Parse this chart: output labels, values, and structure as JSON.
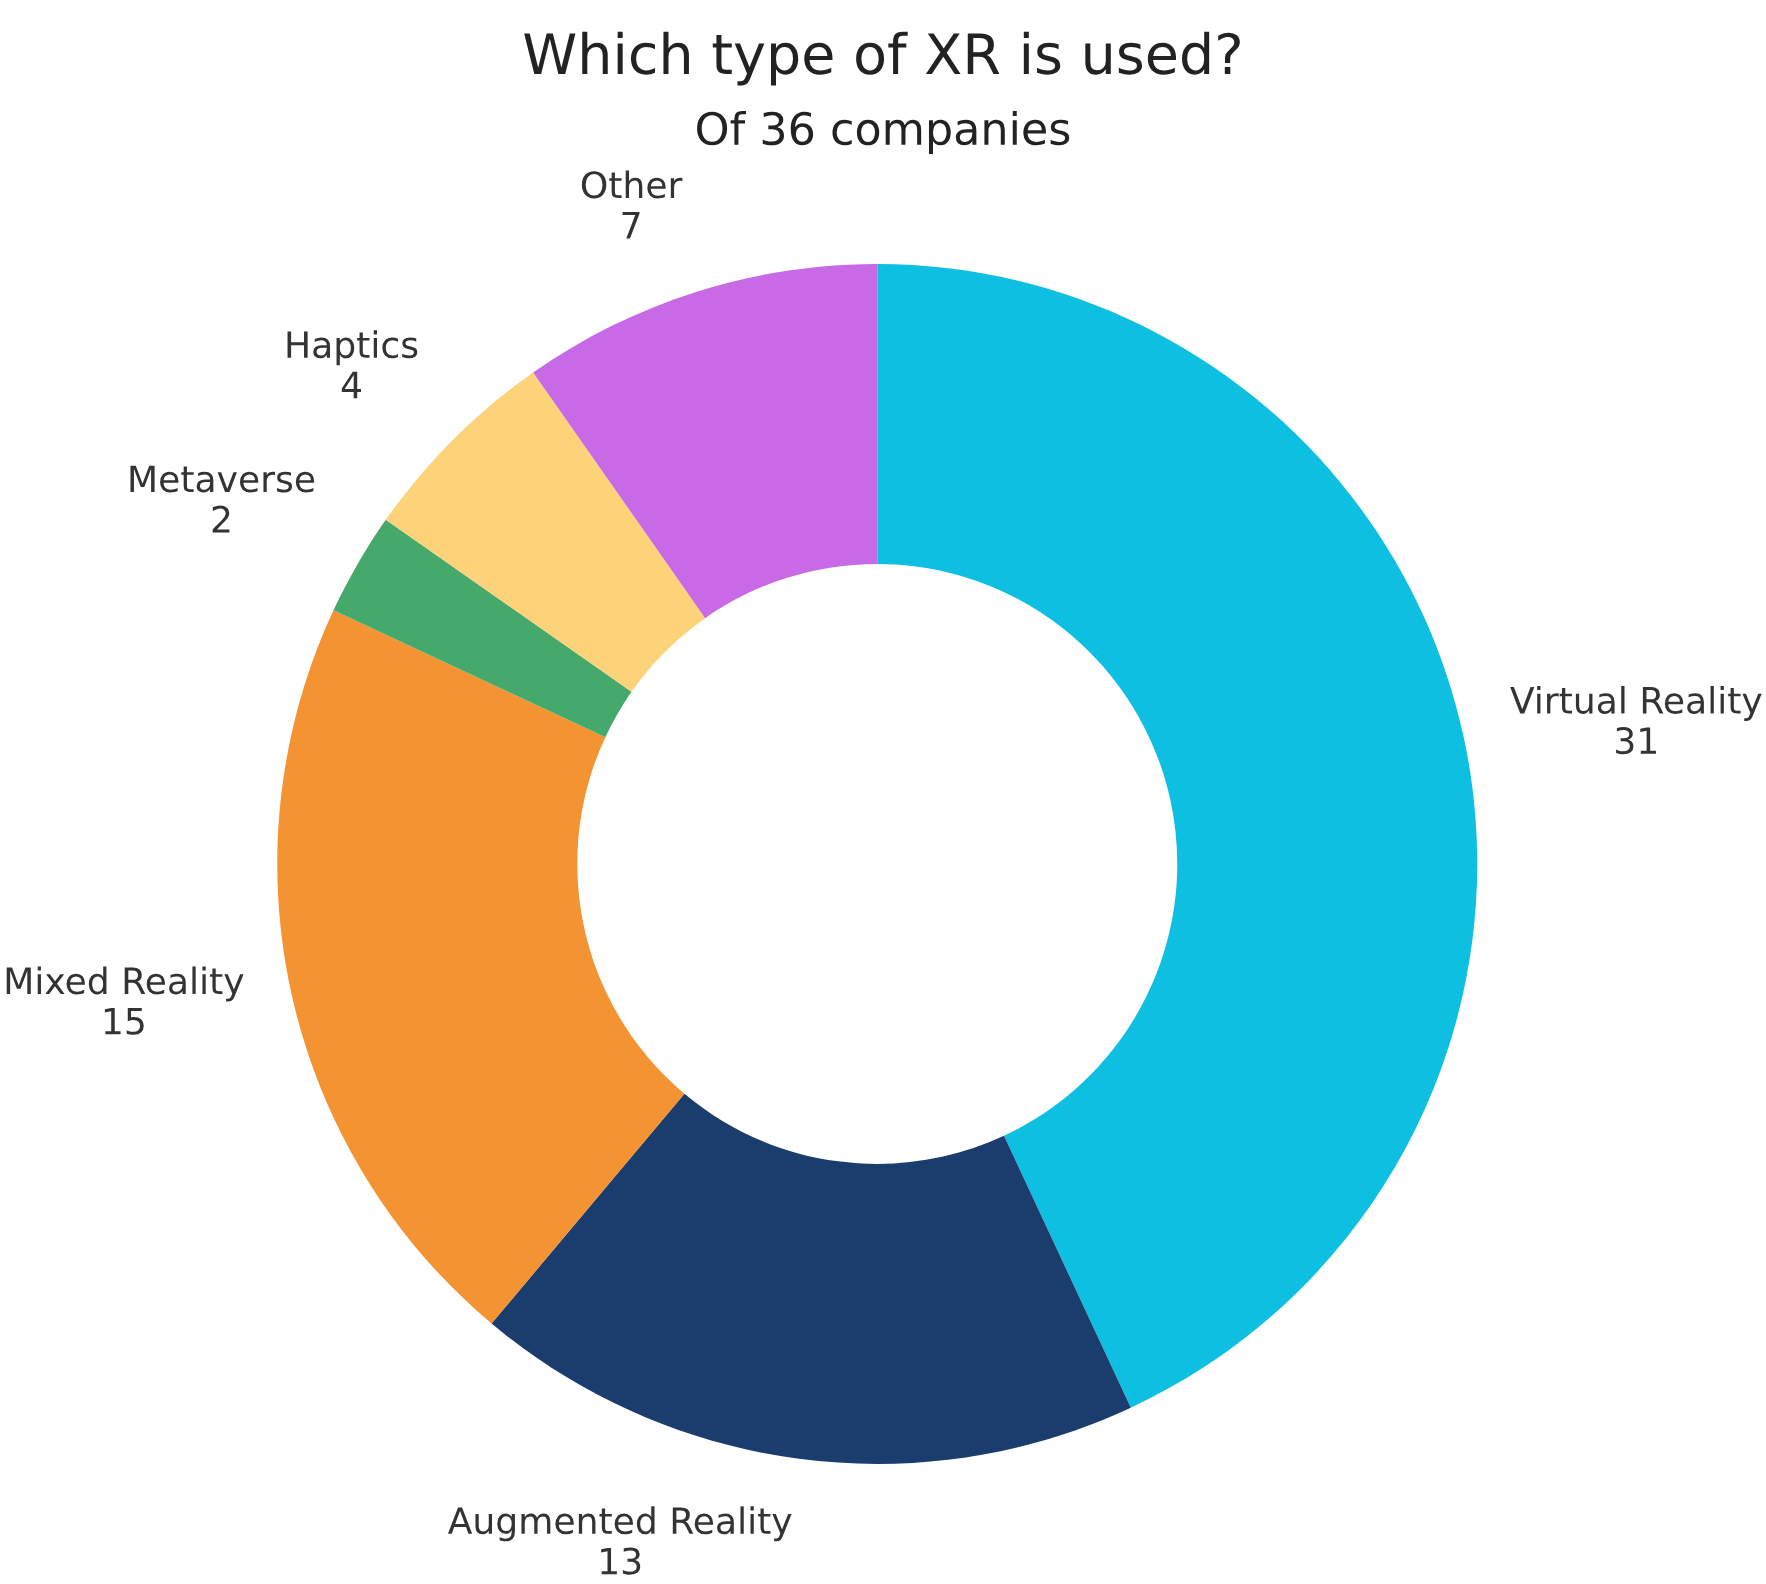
{
  "chart_data": {
    "type": "donut",
    "title": "Which type of XR is used?",
    "subtitle": "Of 36 companies",
    "categories": [
      "Virtual Reality",
      "Augmented Reality",
      "Mixed Reality",
      "Metaverse",
      "Haptics",
      "Other"
    ],
    "values": [
      31,
      13,
      15,
      2,
      4,
      7
    ],
    "colors": [
      "#0dbfe0",
      "#1b3d6e",
      "#f39332",
      "#45a96b",
      "#fdd37a",
      "#c86ae6"
    ],
    "data_labels": true,
    "legend": false
  }
}
